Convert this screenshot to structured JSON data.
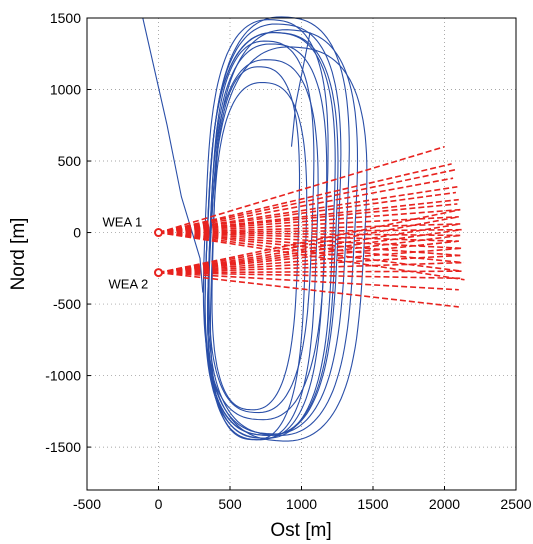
{
  "chart_data": {
    "type": "line",
    "title": "",
    "xlabel": "Ost [m]",
    "ylabel": "Nord [m]",
    "xlim": [
      -500,
      2500
    ],
    "ylim": [
      -1800,
      1500
    ],
    "xticks": [
      -500,
      0,
      500,
      1000,
      1500,
      2000,
      2500
    ],
    "yticks": [
      -1500,
      -1000,
      -500,
      0,
      500,
      1000,
      1500
    ],
    "grid": true,
    "legend": "none",
    "colors": {
      "track": "#2a4fa8",
      "turbine": "#e8231f",
      "grid": "#888888"
    },
    "annotations": [
      {
        "label": "WEA 1",
        "x": 0,
        "y": 0
      },
      {
        "label": "WEA 2",
        "x": 0,
        "y": -280
      }
    ],
    "turbines": [
      {
        "name": "WEA 1",
        "origin": [
          0,
          0
        ],
        "ray_ends": [
          [
            2000,
            600
          ],
          [
            2050,
            480
          ],
          [
            2080,
            440
          ],
          [
            2060,
            380
          ],
          [
            2090,
            320
          ],
          [
            2080,
            280
          ],
          [
            2100,
            230
          ],
          [
            2090,
            200
          ],
          [
            2110,
            160
          ],
          [
            2100,
            110
          ],
          [
            2110,
            60
          ],
          [
            2120,
            20
          ],
          [
            2110,
            -20
          ],
          [
            2100,
            -60
          ],
          [
            2120,
            -110
          ],
          [
            2110,
            -160
          ],
          [
            2130,
            -210
          ],
          [
            2120,
            -270
          ],
          [
            2140,
            -330
          ]
        ]
      },
      {
        "name": "WEA 2",
        "origin": [
          0,
          -280
        ],
        "ray_ends": [
          [
            2110,
            160
          ],
          [
            2100,
            110
          ],
          [
            2110,
            60
          ],
          [
            2120,
            20
          ],
          [
            2110,
            -20
          ],
          [
            2100,
            -60
          ],
          [
            2120,
            -110
          ],
          [
            2110,
            -160
          ],
          [
            2130,
            -210
          ],
          [
            2120,
            -270
          ],
          [
            2110,
            -320
          ],
          [
            2100,
            -400
          ],
          [
            2100,
            -520
          ]
        ]
      }
    ],
    "flight_track": {
      "approach_lines": [
        [
          [
            -110,
            1500
          ],
          [
            60,
            750
          ],
          [
            160,
            250
          ],
          [
            290,
            -180
          ],
          [
            310,
            -420
          ]
        ],
        [
          [
            1060,
            1400
          ],
          [
            1010,
            1150
          ],
          [
            960,
            900
          ],
          [
            930,
            600
          ]
        ]
      ],
      "loops": [
        {
          "cx": 780,
          "cy": -20,
          "rx": 450,
          "ry": 1420,
          "tilt_deg": 13
        },
        {
          "cx": 760,
          "cy": -60,
          "rx": 410,
          "ry": 1380,
          "tilt_deg": 12
        },
        {
          "cx": 800,
          "cy": 20,
          "rx": 470,
          "ry": 1440,
          "tilt_deg": 14
        },
        {
          "cx": 730,
          "cy": -120,
          "rx": 380,
          "ry": 1330,
          "tilt_deg": 11
        },
        {
          "cx": 830,
          "cy": 50,
          "rx": 500,
          "ry": 1460,
          "tilt_deg": 15
        },
        {
          "cx": 700,
          "cy": -200,
          "rx": 330,
          "ry": 1250,
          "tilt_deg": 10
        },
        {
          "cx": 870,
          "cy": 0,
          "rx": 520,
          "ry": 1420,
          "tilt_deg": 16
        },
        {
          "cx": 750,
          "cy": 90,
          "rx": 430,
          "ry": 1400,
          "tilt_deg": 12
        },
        {
          "cx": 680,
          "cy": -40,
          "rx": 300,
          "ry": 1200,
          "tilt_deg": 9
        },
        {
          "cx": 900,
          "cy": -80,
          "rx": 560,
          "ry": 1380,
          "tilt_deg": 17
        },
        {
          "cx": 790,
          "cy": -10,
          "rx": 460,
          "ry": 1410,
          "tilt_deg": 13
        },
        {
          "cx": 720,
          "cy": 40,
          "rx": 360,
          "ry": 1300,
          "tilt_deg": 11
        }
      ]
    }
  }
}
